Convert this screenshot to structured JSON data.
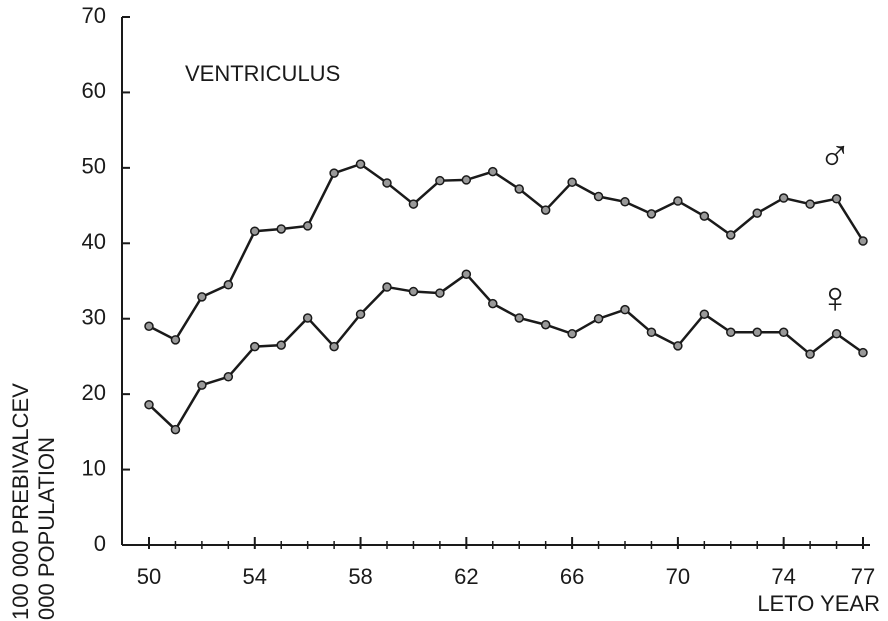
{
  "chart_data": {
    "type": "line",
    "title": "VENTRICULUS",
    "ylabel": [
      "100 000 PREBIVALCEV",
      "000 POPULATION"
    ],
    "xlabel": "LETO YEAR",
    "x": [
      50,
      51,
      52,
      53,
      54,
      55,
      56,
      57,
      58,
      59,
      60,
      61,
      62,
      63,
      64,
      65,
      66,
      67,
      68,
      69,
      70,
      71,
      72,
      73,
      74,
      75,
      76,
      77
    ],
    "series": [
      {
        "name": "♂",
        "color": "#1a1a1a",
        "values": [
          29.0,
          27.2,
          32.9,
          34.5,
          41.6,
          41.9,
          42.3,
          49.3,
          50.5,
          48.0,
          45.2,
          48.3,
          48.4,
          49.5,
          47.2,
          44.4,
          48.1,
          46.2,
          45.5,
          43.9,
          45.6,
          43.6,
          41.1,
          44.0,
          46.0,
          45.2,
          45.9,
          40.3
        ]
      },
      {
        "name": "♀",
        "color": "#1a1a1a",
        "values": [
          18.6,
          15.3,
          21.2,
          22.3,
          26.3,
          26.5,
          30.1,
          26.3,
          30.6,
          34.2,
          33.6,
          33.4,
          35.9,
          32.0,
          30.1,
          29.2,
          28.0,
          30.0,
          31.2,
          28.2,
          26.4,
          30.6,
          28.2,
          28.2,
          28.2,
          25.3,
          28.0,
          25.5
        ]
      }
    ],
    "xlim": [
      50,
      77
    ],
    "xticks": [
      50,
      54,
      58,
      62,
      66,
      70,
      74,
      77
    ],
    "ylim": [
      0,
      70
    ],
    "yticks": [
      0,
      10,
      20,
      30,
      40,
      50,
      60,
      70
    ]
  }
}
